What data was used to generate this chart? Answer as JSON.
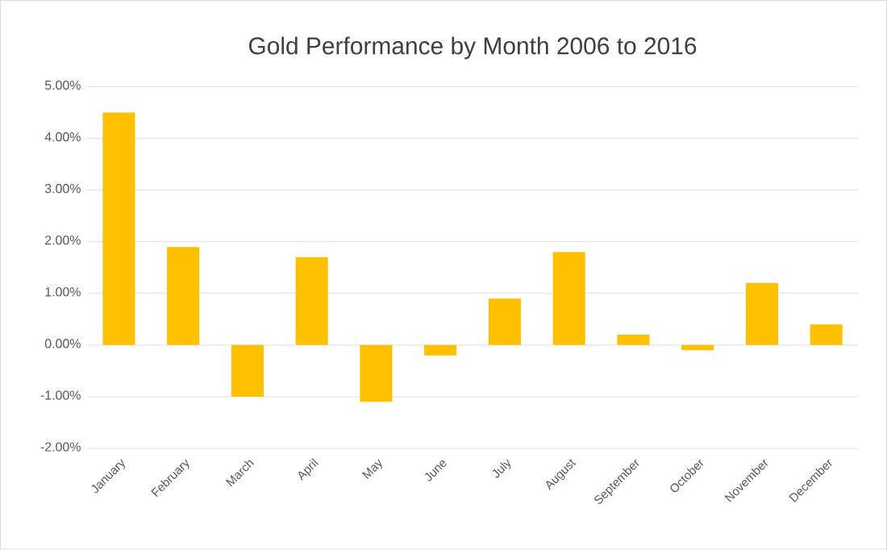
{
  "chart_data": {
    "type": "bar",
    "title": "Gold Performance by Month 2006 to 2016",
    "categories": [
      "January",
      "February",
      "March",
      "April",
      "May",
      "June",
      "July",
      "August",
      "September",
      "October",
      "November",
      "December"
    ],
    "values": [
      4.5,
      1.9,
      -1.0,
      1.7,
      -1.1,
      -0.2,
      0.9,
      1.8,
      0.2,
      -0.1,
      1.2,
      0.4
    ],
    "color": "#ffc000",
    "ylim": [
      -2,
      5
    ],
    "yticks": [
      {
        "value": -2,
        "label": "-2.00%"
      },
      {
        "value": -1,
        "label": "-1.00%"
      },
      {
        "value": 0,
        "label": "0.00%"
      },
      {
        "value": 1,
        "label": "1.00%"
      },
      {
        "value": 2,
        "label": "2.00%"
      },
      {
        "value": 3,
        "label": "3.00%"
      },
      {
        "value": 4,
        "label": "4.00%"
      },
      {
        "value": 5,
        "label": "5.00%"
      }
    ],
    "grid": "y"
  }
}
